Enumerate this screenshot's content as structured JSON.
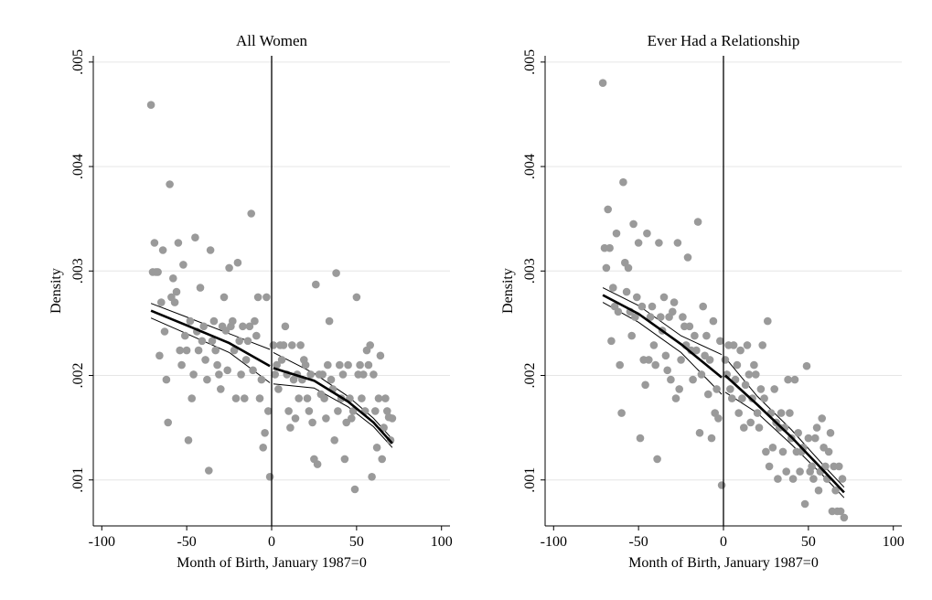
{
  "chart_data": [
    {
      "type": "scatter",
      "title": "All Women",
      "xlabel": "Month of Birth, January 1987=0",
      "ylabel": "Density",
      "xlim": [
        -105,
        105
      ],
      "ylim": [
        0.00056,
        0.00506
      ],
      "xticks": [
        -100,
        -50,
        0,
        50,
        100
      ],
      "xtick_labels": [
        "-100",
        "-50",
        "0",
        "50",
        "100"
      ],
      "yticks": [
        0.001,
        0.002,
        0.003,
        0.004,
        0.005
      ],
      "ytick_labels": [
        ".001",
        ".002",
        ".003",
        ".004",
        ".005"
      ],
      "grid": "horizontal",
      "vline_x": 0,
      "points": [
        [
          -71,
          0.00459
        ],
        [
          -70,
          0.00299
        ],
        [
          -69,
          0.00327
        ],
        [
          -68,
          0.00299
        ],
        [
          -67,
          0.00299
        ],
        [
          -66,
          0.00219
        ],
        [
          -65,
          0.0027
        ],
        [
          -64,
          0.0032
        ],
        [
          -63,
          0.00242
        ],
        [
          -62,
          0.00196
        ],
        [
          -61,
          0.00155
        ],
        [
          -60,
          0.00383
        ],
        [
          -59,
          0.00275
        ],
        [
          -58,
          0.00293
        ],
        [
          -57,
          0.0027
        ],
        [
          -56,
          0.0028
        ],
        [
          -55,
          0.00327
        ],
        [
          -54,
          0.00224
        ],
        [
          -53,
          0.0021
        ],
        [
          -52,
          0.00306
        ],
        [
          -51,
          0.00238
        ],
        [
          -50,
          0.00224
        ],
        [
          -49,
          0.00138
        ],
        [
          -48,
          0.00252
        ],
        [
          -47,
          0.00178
        ],
        [
          -46,
          0.00201
        ],
        [
          -45,
          0.00332
        ],
        [
          -44,
          0.00242
        ],
        [
          -43,
          0.00224
        ],
        [
          -42,
          0.00284
        ],
        [
          -41,
          0.00233
        ],
        [
          -40,
          0.00247
        ],
        [
          -39,
          0.00215
        ],
        [
          -38,
          0.00196
        ],
        [
          -37,
          0.00109
        ],
        [
          -36,
          0.0032
        ],
        [
          -35,
          0.00233
        ],
        [
          -34,
          0.00252
        ],
        [
          -33,
          0.00224
        ],
        [
          -32,
          0.0021
        ],
        [
          -31,
          0.00201
        ],
        [
          -30,
          0.00187
        ],
        [
          -29,
          0.00247
        ],
        [
          -28,
          0.00275
        ],
        [
          -27,
          0.00243
        ],
        [
          -26,
          0.00205
        ],
        [
          -25,
          0.00303
        ],
        [
          -24,
          0.00247
        ],
        [
          -23,
          0.00252
        ],
        [
          -22,
          0.00224
        ],
        [
          -21,
          0.00178
        ],
        [
          -20,
          0.00308
        ],
        [
          -19,
          0.00233
        ],
        [
          -18,
          0.00201
        ],
        [
          -17,
          0.00247
        ],
        [
          -16,
          0.00178
        ],
        [
          -15,
          0.00215
        ],
        [
          -14,
          0.00233
        ],
        [
          -13,
          0.00247
        ],
        [
          -12,
          0.00355
        ],
        [
          -11,
          0.00205
        ],
        [
          -10,
          0.00252
        ],
        [
          -9,
          0.00238
        ],
        [
          -8,
          0.00275
        ],
        [
          -7,
          0.00178
        ],
        [
          -6,
          0.00196
        ],
        [
          -5,
          0.00131
        ],
        [
          -4,
          0.00145
        ],
        [
          -3,
          0.00275
        ],
        [
          -2,
          0.00166
        ],
        [
          -1,
          0.00103
        ],
        [
          1,
          0.00229
        ],
        [
          2,
          0.00201
        ],
        [
          3,
          0.0021
        ],
        [
          4,
          0.00187
        ],
        [
          5,
          0.00229
        ],
        [
          6,
          0.00215
        ],
        [
          7,
          0.00229
        ],
        [
          8,
          0.00247
        ],
        [
          9,
          0.00201
        ],
        [
          10,
          0.00166
        ],
        [
          11,
          0.0015
        ],
        [
          12,
          0.00229
        ],
        [
          13,
          0.00196
        ],
        [
          14,
          0.00159
        ],
        [
          15,
          0.00201
        ],
        [
          16,
          0.00178
        ],
        [
          17,
          0.00229
        ],
        [
          18,
          0.00196
        ],
        [
          19,
          0.00215
        ],
        [
          20,
          0.0021
        ],
        [
          21,
          0.00178
        ],
        [
          22,
          0.00166
        ],
        [
          23,
          0.00201
        ],
        [
          24,
          0.00155
        ],
        [
          25,
          0.0012
        ],
        [
          26,
          0.00287
        ],
        [
          27,
          0.00115
        ],
        [
          28,
          0.00201
        ],
        [
          29,
          0.00182
        ],
        [
          30,
          0.00201
        ],
        [
          31,
          0.00178
        ],
        [
          32,
          0.00159
        ],
        [
          33,
          0.0021
        ],
        [
          34,
          0.00252
        ],
        [
          35,
          0.00196
        ],
        [
          36,
          0.00187
        ],
        [
          37,
          0.00138
        ],
        [
          38,
          0.00298
        ],
        [
          39,
          0.00166
        ],
        [
          40,
          0.0021
        ],
        [
          41,
          0.00178
        ],
        [
          42,
          0.00201
        ],
        [
          43,
          0.0012
        ],
        [
          44,
          0.00155
        ],
        [
          45,
          0.0021
        ],
        [
          46,
          0.00178
        ],
        [
          47,
          0.00159
        ],
        [
          48,
          0.00166
        ],
        [
          49,
          0.00091
        ],
        [
          50,
          0.00275
        ],
        [
          51,
          0.00201
        ],
        [
          52,
          0.0021
        ],
        [
          53,
          0.00178
        ],
        [
          54,
          0.00201
        ],
        [
          55,
          0.00166
        ],
        [
          56,
          0.00224
        ],
        [
          57,
          0.0021
        ],
        [
          58,
          0.00229
        ],
        [
          59,
          0.00103
        ],
        [
          60,
          0.00201
        ],
        [
          61,
          0.00166
        ],
        [
          62,
          0.00131
        ],
        [
          63,
          0.00178
        ],
        [
          64,
          0.00219
        ],
        [
          65,
          0.0012
        ],
        [
          66,
          0.0015
        ],
        [
          67,
          0.00178
        ],
        [
          68,
          0.00166
        ],
        [
          69,
          0.0016
        ],
        [
          70,
          0.00138
        ],
        [
          71,
          0.00159
        ]
      ],
      "fit_left": [
        [
          -71,
          0.00262
        ],
        [
          -50,
          0.00248
        ],
        [
          -25,
          0.00231
        ],
        [
          -1,
          0.00209
        ]
      ],
      "fit_right": [
        [
          1,
          0.00207
        ],
        [
          25,
          0.00195
        ],
        [
          45,
          0.00175
        ],
        [
          60,
          0.00155
        ],
        [
          71,
          0.00135
        ]
      ],
      "ci_upper_left": [
        [
          -71,
          0.00269
        ],
        [
          -50,
          0.00256
        ],
        [
          -25,
          0.0024
        ],
        [
          -1,
          0.00225
        ]
      ],
      "ci_lower_left": [
        [
          -71,
          0.00255
        ],
        [
          -50,
          0.0024
        ],
        [
          -25,
          0.00222
        ],
        [
          -1,
          0.00193
        ]
      ],
      "ci_upper_right": [
        [
          1,
          0.00222
        ],
        [
          25,
          0.00202
        ],
        [
          45,
          0.0018
        ],
        [
          60,
          0.00159
        ],
        [
          71,
          0.00139
        ]
      ],
      "ci_lower_right": [
        [
          1,
          0.00192
        ],
        [
          25,
          0.00188
        ],
        [
          45,
          0.0017
        ],
        [
          60,
          0.00151
        ],
        [
          71,
          0.00131
        ]
      ]
    },
    {
      "type": "scatter",
      "title": "Ever Had a Relationship",
      "xlabel": "Month of Birth, January 1987=0",
      "ylabel": "Density",
      "xlim": [
        -105,
        105
      ],
      "ylim": [
        0.00056,
        0.00506
      ],
      "xticks": [
        -100,
        -50,
        0,
        50,
        100
      ],
      "xtick_labels": [
        "-100",
        "-50",
        "0",
        "50",
        "100"
      ],
      "yticks": [
        0.001,
        0.002,
        0.003,
        0.004,
        0.005
      ],
      "ytick_labels": [
        ".001",
        ".002",
        ".003",
        ".004",
        ".005"
      ],
      "grid": "horizontal",
      "vline_x": 0,
      "points": [
        [
          -71,
          0.0048
        ],
        [
          -70,
          0.00322
        ],
        [
          -69,
          0.00303
        ],
        [
          -68,
          0.00359
        ],
        [
          -67,
          0.00322
        ],
        [
          -66,
          0.00233
        ],
        [
          -65,
          0.00284
        ],
        [
          -64,
          0.00266
        ],
        [
          -63,
          0.00336
        ],
        [
          -62,
          0.00261
        ],
        [
          -61,
          0.0021
        ],
        [
          -60,
          0.00164
        ],
        [
          -59,
          0.00385
        ],
        [
          -58,
          0.00308
        ],
        [
          -57,
          0.0028
        ],
        [
          -56,
          0.00303
        ],
        [
          -55,
          0.00261
        ],
        [
          -54,
          0.00238
        ],
        [
          -53,
          0.00345
        ],
        [
          -52,
          0.00256
        ],
        [
          -51,
          0.00275
        ],
        [
          -50,
          0.00327
        ],
        [
          -49,
          0.0014
        ],
        [
          -48,
          0.00266
        ],
        [
          -47,
          0.00215
        ],
        [
          -46,
          0.00191
        ],
        [
          -45,
          0.00336
        ],
        [
          -44,
          0.00215
        ],
        [
          -43,
          0.00256
        ],
        [
          -42,
          0.00266
        ],
        [
          -41,
          0.00229
        ],
        [
          -40,
          0.0021
        ],
        [
          -39,
          0.0012
        ],
        [
          -38,
          0.00327
        ],
        [
          -37,
          0.00256
        ],
        [
          -36,
          0.00243
        ],
        [
          -35,
          0.00275
        ],
        [
          -34,
          0.00219
        ],
        [
          -33,
          0.00205
        ],
        [
          -32,
          0.00256
        ],
        [
          -31,
          0.00196
        ],
        [
          -30,
          0.00261
        ],
        [
          -29,
          0.0027
        ],
        [
          -28,
          0.00178
        ],
        [
          -27,
          0.00327
        ],
        [
          -26,
          0.00187
        ],
        [
          -25,
          0.00215
        ],
        [
          -24,
          0.00256
        ],
        [
          -23,
          0.00247
        ],
        [
          -22,
          0.00229
        ],
        [
          -21,
          0.00313
        ],
        [
          -20,
          0.00247
        ],
        [
          -19,
          0.00224
        ],
        [
          -18,
          0.00196
        ],
        [
          -17,
          0.00238
        ],
        [
          -16,
          0.00224
        ],
        [
          -15,
          0.00347
        ],
        [
          -14,
          0.00145
        ],
        [
          -13,
          0.00201
        ],
        [
          -12,
          0.00266
        ],
        [
          -11,
          0.00219
        ],
        [
          -10,
          0.00238
        ],
        [
          -9,
          0.00182
        ],
        [
          -8,
          0.00215
        ],
        [
          -7,
          0.0014
        ],
        [
          -6,
          0.00252
        ],
        [
          -5,
          0.00164
        ],
        [
          -4,
          0.00187
        ],
        [
          -3,
          0.00159
        ],
        [
          -2,
          0.00233
        ],
        [
          -1,
          0.00095
        ],
        [
          1,
          0.00215
        ],
        [
          2,
          0.00201
        ],
        [
          3,
          0.00229
        ],
        [
          4,
          0.00187
        ],
        [
          5,
          0.00178
        ],
        [
          6,
          0.00229
        ],
        [
          7,
          0.00196
        ],
        [
          8,
          0.0021
        ],
        [
          9,
          0.00164
        ],
        [
          10,
          0.00224
        ],
        [
          11,
          0.00178
        ],
        [
          12,
          0.0015
        ],
        [
          13,
          0.00191
        ],
        [
          14,
          0.00229
        ],
        [
          15,
          0.00201
        ],
        [
          16,
          0.00155
        ],
        [
          17,
          0.00178
        ],
        [
          18,
          0.0021
        ],
        [
          19,
          0.00201
        ],
        [
          20,
          0.00164
        ],
        [
          21,
          0.0015
        ],
        [
          22,
          0.00187
        ],
        [
          23,
          0.00229
        ],
        [
          24,
          0.00178
        ],
        [
          25,
          0.00127
        ],
        [
          26,
          0.00252
        ],
        [
          27,
          0.00113
        ],
        [
          28,
          0.00164
        ],
        [
          29,
          0.00131
        ],
        [
          30,
          0.00187
        ],
        [
          31,
          0.00155
        ],
        [
          32,
          0.00101
        ],
        [
          33,
          0.0015
        ],
        [
          34,
          0.00164
        ],
        [
          35,
          0.00127
        ],
        [
          36,
          0.0015
        ],
        [
          37,
          0.00108
        ],
        [
          38,
          0.00196
        ],
        [
          39,
          0.00164
        ],
        [
          40,
          0.0014
        ],
        [
          41,
          0.00101
        ],
        [
          42,
          0.00196
        ],
        [
          43,
          0.00127
        ],
        [
          44,
          0.00145
        ],
        [
          45,
          0.00108
        ],
        [
          46,
          0.00127
        ],
        [
          47,
          0.00131
        ],
        [
          48,
          0.00077
        ],
        [
          49,
          0.00209
        ],
        [
          50,
          0.0014
        ],
        [
          51,
          0.00108
        ],
        [
          52,
          0.00113
        ],
        [
          53,
          0.00101
        ],
        [
          54,
          0.0014
        ],
        [
          55,
          0.0015
        ],
        [
          56,
          0.0009
        ],
        [
          57,
          0.00108
        ],
        [
          58,
          0.00159
        ],
        [
          59,
          0.00131
        ],
        [
          60,
          0.00113
        ],
        [
          61,
          0.00101
        ],
        [
          62,
          0.00127
        ],
        [
          63,
          0.00145
        ],
        [
          64,
          0.0007
        ],
        [
          65,
          0.00113
        ],
        [
          66,
          0.0009
        ],
        [
          67,
          0.0007
        ],
        [
          68,
          0.00113
        ],
        [
          69,
          0.0007
        ],
        [
          70,
          0.00101
        ],
        [
          71,
          0.00064
        ]
      ],
      "fit_left": [
        [
          -71,
          0.00277
        ],
        [
          -50,
          0.00259
        ],
        [
          -25,
          0.0023
        ],
        [
          -1,
          0.00198
        ]
      ],
      "fit_right": [
        [
          1,
          0.002
        ],
        [
          20,
          0.00172
        ],
        [
          40,
          0.00141
        ],
        [
          60,
          0.00107
        ],
        [
          71,
          0.00088
        ]
      ],
      "ci_upper_left": [
        [
          -71,
          0.00284
        ],
        [
          -50,
          0.00267
        ],
        [
          -25,
          0.00238
        ],
        [
          -1,
          0.0022
        ]
      ],
      "ci_lower_left": [
        [
          -71,
          0.0027
        ],
        [
          -50,
          0.00251
        ],
        [
          -25,
          0.00222
        ],
        [
          -1,
          0.00182
        ]
      ],
      "ci_upper_right": [
        [
          1,
          0.00217
        ],
        [
          20,
          0.0018
        ],
        [
          40,
          0.00148
        ],
        [
          60,
          0.00112
        ],
        [
          71,
          0.00093
        ]
      ],
      "ci_lower_right": [
        [
          1,
          0.00184
        ],
        [
          20,
          0.00164
        ],
        [
          40,
          0.00134
        ],
        [
          60,
          0.00102
        ],
        [
          71,
          0.00083
        ]
      ]
    }
  ]
}
